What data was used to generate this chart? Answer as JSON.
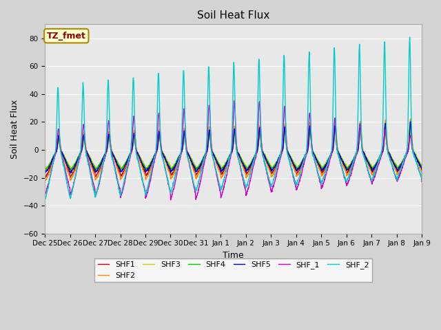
{
  "title": "Soil Heat Flux",
  "ylabel": "Soil Heat Flux",
  "xlabel": "Time",
  "ylim": [
    -60,
    90
  ],
  "yticks": [
    -60,
    -40,
    -20,
    0,
    20,
    40,
    60,
    80
  ],
  "xtick_labels": [
    "Dec 25",
    "Dec 26",
    "Dec 27",
    "Dec 28",
    "Dec 29",
    "Dec 30",
    "Dec 31",
    "Jan 1",
    "Jan 2",
    "Jan 3",
    "Jan 4",
    "Jan 5",
    "Jan 6",
    "Jan 7",
    "Jan 8",
    "Jan 9"
  ],
  "annotation_text": "TZ_fmet",
  "background_color": "#d3d3d3",
  "plot_bg_color": "#e8e8e8",
  "line_colors": {
    "SHF1": "#cc0000",
    "SHF2": "#ff8800",
    "SHF3": "#cccc00",
    "SHF4": "#00cc00",
    "SHF5": "#0000cc",
    "SHF_1": "#cc00cc",
    "SHF_2": "#00cccc"
  },
  "n_days": 15,
  "pts_per_day": 144
}
